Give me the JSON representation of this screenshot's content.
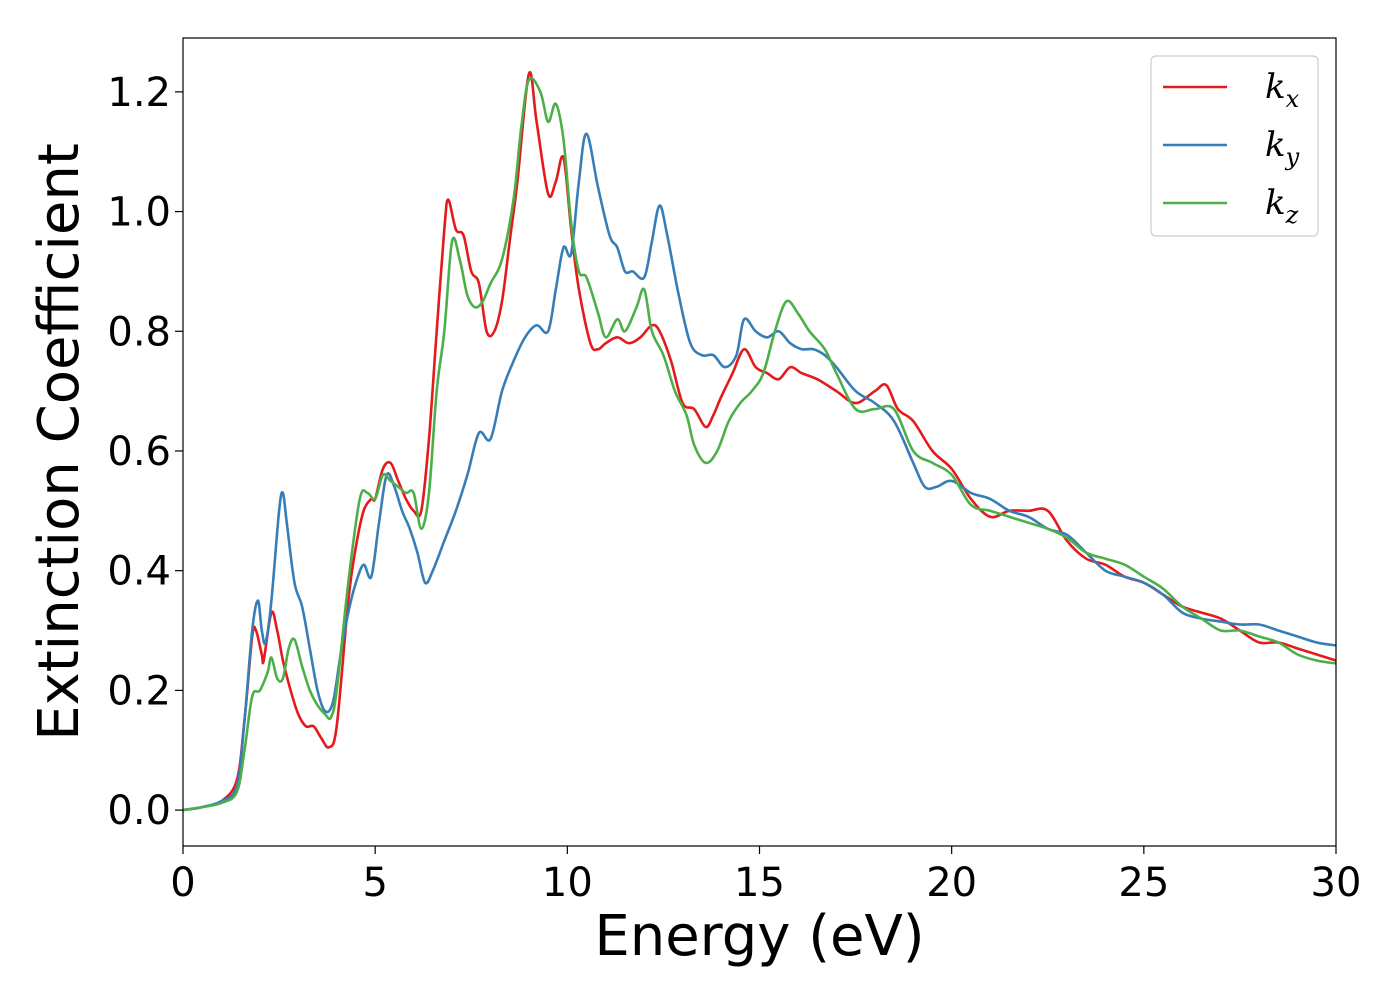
{
  "chart_data": {
    "type": "line",
    "title": "",
    "xlabel": "Energy (eV)",
    "ylabel": "Extinction Coefficient",
    "xlim": [
      0,
      30
    ],
    "ylim": [
      -0.06,
      1.29
    ],
    "xticks": [
      0,
      5,
      10,
      15,
      20,
      25,
      30
    ],
    "xtick_labels": [
      "0",
      "5",
      "10",
      "15",
      "20",
      "25",
      "30"
    ],
    "yticks": [
      0.0,
      0.2,
      0.4,
      0.6,
      0.8,
      1.0,
      1.2
    ],
    "ytick_labels": [
      "0.0",
      "0.2",
      "0.4",
      "0.6",
      "0.8",
      "1.0",
      "1.2"
    ],
    "grid": false,
    "legend_position": "top-right",
    "series": [
      {
        "name": "k_x",
        "legend_base": "k",
        "legend_sub": "x",
        "color": "#e41a1c",
        "points": [
          [
            0,
            0
          ],
          [
            0.5,
            0.005
          ],
          [
            1,
            0.015
          ],
          [
            1.4,
            0.05
          ],
          [
            1.6,
            0.15
          ],
          [
            1.8,
            0.29
          ],
          [
            1.9,
            0.3
          ],
          [
            2.05,
            0.26
          ],
          [
            2.1,
            0.25
          ],
          [
            2.3,
            0.33
          ],
          [
            2.45,
            0.3
          ],
          [
            2.6,
            0.25
          ],
          [
            2.8,
            0.2
          ],
          [
            3.0,
            0.16
          ],
          [
            3.2,
            0.14
          ],
          [
            3.4,
            0.14
          ],
          [
            3.6,
            0.12
          ],
          [
            3.8,
            0.105
          ],
          [
            4.0,
            0.14
          ],
          [
            4.3,
            0.35
          ],
          [
            4.5,
            0.44
          ],
          [
            4.7,
            0.5
          ],
          [
            4.9,
            0.52
          ],
          [
            5.0,
            0.52
          ],
          [
            5.2,
            0.57
          ],
          [
            5.4,
            0.58
          ],
          [
            5.6,
            0.55
          ],
          [
            5.8,
            0.52
          ],
          [
            6.0,
            0.5
          ],
          [
            6.2,
            0.5
          ],
          [
            6.4,
            0.62
          ],
          [
            6.6,
            0.8
          ],
          [
            6.8,
            0.97
          ],
          [
            6.9,
            1.02
          ],
          [
            7.1,
            0.97
          ],
          [
            7.3,
            0.96
          ],
          [
            7.5,
            0.9
          ],
          [
            7.7,
            0.88
          ],
          [
            7.9,
            0.8
          ],
          [
            8.1,
            0.8
          ],
          [
            8.3,
            0.85
          ],
          [
            8.5,
            0.95
          ],
          [
            8.7,
            1.05
          ],
          [
            9.0,
            1.23
          ],
          [
            9.2,
            1.15
          ],
          [
            9.5,
            1.03
          ],
          [
            9.7,
            1.05
          ],
          [
            9.9,
            1.09
          ],
          [
            10.1,
            0.97
          ],
          [
            10.3,
            0.87
          ],
          [
            10.6,
            0.78
          ],
          [
            10.8,
            0.77
          ],
          [
            11.0,
            0.78
          ],
          [
            11.3,
            0.79
          ],
          [
            11.6,
            0.78
          ],
          [
            11.9,
            0.79
          ],
          [
            12.2,
            0.81
          ],
          [
            12.4,
            0.8
          ],
          [
            12.7,
            0.75
          ],
          [
            13.0,
            0.68
          ],
          [
            13.3,
            0.67
          ],
          [
            13.6,
            0.64
          ],
          [
            13.8,
            0.66
          ],
          [
            14.0,
            0.69
          ],
          [
            14.3,
            0.73
          ],
          [
            14.6,
            0.77
          ],
          [
            14.9,
            0.74
          ],
          [
            15.2,
            0.73
          ],
          [
            15.5,
            0.72
          ],
          [
            15.8,
            0.74
          ],
          [
            16.1,
            0.73
          ],
          [
            16.5,
            0.72
          ],
          [
            17.0,
            0.7
          ],
          [
            17.5,
            0.68
          ],
          [
            18.0,
            0.7
          ],
          [
            18.3,
            0.71
          ],
          [
            18.6,
            0.67
          ],
          [
            19.0,
            0.65
          ],
          [
            19.5,
            0.6
          ],
          [
            20.0,
            0.57
          ],
          [
            20.5,
            0.52
          ],
          [
            21.0,
            0.49
          ],
          [
            21.5,
            0.5
          ],
          [
            22.0,
            0.5
          ],
          [
            22.5,
            0.5
          ],
          [
            23.0,
            0.45
          ],
          [
            23.5,
            0.42
          ],
          [
            24.0,
            0.41
          ],
          [
            24.5,
            0.39
          ],
          [
            25.0,
            0.38
          ],
          [
            25.5,
            0.36
          ],
          [
            26.0,
            0.34
          ],
          [
            26.5,
            0.33
          ],
          [
            27.0,
            0.32
          ],
          [
            27.5,
            0.3
          ],
          [
            28.0,
            0.28
          ],
          [
            28.5,
            0.28
          ],
          [
            29.0,
            0.27
          ],
          [
            29.5,
            0.26
          ],
          [
            30.0,
            0.25
          ]
        ]
      },
      {
        "name": "k_y",
        "legend_base": "k",
        "legend_sub": "y",
        "color": "#377eb8",
        "points": [
          [
            0,
            0
          ],
          [
            0.5,
            0.005
          ],
          [
            1,
            0.015
          ],
          [
            1.4,
            0.04
          ],
          [
            1.6,
            0.15
          ],
          [
            1.8,
            0.3
          ],
          [
            1.95,
            0.35
          ],
          [
            2.05,
            0.3
          ],
          [
            2.15,
            0.28
          ],
          [
            2.3,
            0.35
          ],
          [
            2.5,
            0.5
          ],
          [
            2.6,
            0.53
          ],
          [
            2.7,
            0.48
          ],
          [
            2.9,
            0.38
          ],
          [
            3.1,
            0.34
          ],
          [
            3.3,
            0.27
          ],
          [
            3.5,
            0.2
          ],
          [
            3.7,
            0.165
          ],
          [
            3.9,
            0.18
          ],
          [
            4.1,
            0.26
          ],
          [
            4.3,
            0.33
          ],
          [
            4.5,
            0.38
          ],
          [
            4.7,
            0.41
          ],
          [
            4.9,
            0.39
          ],
          [
            5.1,
            0.48
          ],
          [
            5.3,
            0.56
          ],
          [
            5.5,
            0.54
          ],
          [
            5.7,
            0.5
          ],
          [
            5.9,
            0.47
          ],
          [
            6.1,
            0.43
          ],
          [
            6.3,
            0.38
          ],
          [
            6.5,
            0.4
          ],
          [
            6.8,
            0.45
          ],
          [
            7.1,
            0.5
          ],
          [
            7.4,
            0.56
          ],
          [
            7.7,
            0.63
          ],
          [
            8.0,
            0.62
          ],
          [
            8.3,
            0.7
          ],
          [
            8.6,
            0.75
          ],
          [
            8.9,
            0.79
          ],
          [
            9.2,
            0.81
          ],
          [
            9.5,
            0.8
          ],
          [
            9.7,
            0.87
          ],
          [
            9.9,
            0.94
          ],
          [
            10.1,
            0.93
          ],
          [
            10.3,
            1.05
          ],
          [
            10.5,
            1.13
          ],
          [
            10.8,
            1.04
          ],
          [
            11.1,
            0.96
          ],
          [
            11.3,
            0.94
          ],
          [
            11.5,
            0.9
          ],
          [
            11.7,
            0.9
          ],
          [
            12.0,
            0.89
          ],
          [
            12.2,
            0.95
          ],
          [
            12.4,
            1.01
          ],
          [
            12.6,
            0.96
          ],
          [
            12.9,
            0.86
          ],
          [
            13.2,
            0.78
          ],
          [
            13.5,
            0.76
          ],
          [
            13.8,
            0.76
          ],
          [
            14.1,
            0.74
          ],
          [
            14.4,
            0.76
          ],
          [
            14.6,
            0.82
          ],
          [
            14.9,
            0.8
          ],
          [
            15.2,
            0.79
          ],
          [
            15.5,
            0.8
          ],
          [
            15.8,
            0.78
          ],
          [
            16.1,
            0.77
          ],
          [
            16.4,
            0.77
          ],
          [
            16.7,
            0.76
          ],
          [
            17.0,
            0.74
          ],
          [
            17.5,
            0.7
          ],
          [
            18.0,
            0.68
          ],
          [
            18.5,
            0.65
          ],
          [
            19.0,
            0.58
          ],
          [
            19.3,
            0.54
          ],
          [
            19.6,
            0.54
          ],
          [
            20.0,
            0.55
          ],
          [
            20.5,
            0.53
          ],
          [
            21.0,
            0.52
          ],
          [
            21.5,
            0.5
          ],
          [
            22.0,
            0.49
          ],
          [
            22.5,
            0.47
          ],
          [
            23.0,
            0.46
          ],
          [
            23.5,
            0.43
          ],
          [
            24.0,
            0.4
          ],
          [
            24.5,
            0.39
          ],
          [
            25.0,
            0.38
          ],
          [
            25.5,
            0.36
          ],
          [
            26.0,
            0.33
          ],
          [
            26.5,
            0.32
          ],
          [
            27.0,
            0.315
          ],
          [
            27.5,
            0.31
          ],
          [
            28.0,
            0.31
          ],
          [
            28.5,
            0.3
          ],
          [
            29.0,
            0.29
          ],
          [
            29.5,
            0.28
          ],
          [
            30.0,
            0.275
          ]
        ]
      },
      {
        "name": "k_z",
        "legend_base": "k",
        "legend_sub": "z",
        "color": "#4daf4a",
        "points": [
          [
            0,
            0
          ],
          [
            0.5,
            0.005
          ],
          [
            1,
            0.012
          ],
          [
            1.4,
            0.03
          ],
          [
            1.6,
            0.1
          ],
          [
            1.8,
            0.19
          ],
          [
            2.0,
            0.2
          ],
          [
            2.2,
            0.23
          ],
          [
            2.3,
            0.255
          ],
          [
            2.45,
            0.22
          ],
          [
            2.6,
            0.22
          ],
          [
            2.75,
            0.27
          ],
          [
            2.9,
            0.285
          ],
          [
            3.1,
            0.24
          ],
          [
            3.3,
            0.2
          ],
          [
            3.5,
            0.175
          ],
          [
            3.7,
            0.16
          ],
          [
            3.85,
            0.155
          ],
          [
            4.0,
            0.2
          ],
          [
            4.3,
            0.38
          ],
          [
            4.6,
            0.52
          ],
          [
            4.8,
            0.53
          ],
          [
            5.0,
            0.52
          ],
          [
            5.2,
            0.56
          ],
          [
            5.4,
            0.55
          ],
          [
            5.6,
            0.54
          ],
          [
            5.8,
            0.53
          ],
          [
            6.0,
            0.53
          ],
          [
            6.2,
            0.47
          ],
          [
            6.4,
            0.53
          ],
          [
            6.6,
            0.7
          ],
          [
            6.8,
            0.8
          ],
          [
            7.0,
            0.95
          ],
          [
            7.2,
            0.92
          ],
          [
            7.4,
            0.86
          ],
          [
            7.6,
            0.84
          ],
          [
            7.8,
            0.85
          ],
          [
            8.0,
            0.88
          ],
          [
            8.3,
            0.92
          ],
          [
            8.6,
            1.02
          ],
          [
            8.8,
            1.14
          ],
          [
            9.0,
            1.22
          ],
          [
            9.3,
            1.2
          ],
          [
            9.5,
            1.15
          ],
          [
            9.7,
            1.18
          ],
          [
            9.9,
            1.12
          ],
          [
            10.1,
            0.98
          ],
          [
            10.3,
            0.9
          ],
          [
            10.5,
            0.89
          ],
          [
            10.8,
            0.83
          ],
          [
            11.0,
            0.79
          ],
          [
            11.3,
            0.82
          ],
          [
            11.5,
            0.8
          ],
          [
            11.8,
            0.84
          ],
          [
            12.0,
            0.87
          ],
          [
            12.2,
            0.8
          ],
          [
            12.5,
            0.76
          ],
          [
            12.8,
            0.7
          ],
          [
            13.1,
            0.66
          ],
          [
            13.3,
            0.61
          ],
          [
            13.6,
            0.58
          ],
          [
            13.9,
            0.6
          ],
          [
            14.2,
            0.65
          ],
          [
            14.5,
            0.68
          ],
          [
            14.8,
            0.7
          ],
          [
            15.1,
            0.73
          ],
          [
            15.4,
            0.8
          ],
          [
            15.7,
            0.85
          ],
          [
            16.0,
            0.83
          ],
          [
            16.3,
            0.8
          ],
          [
            16.7,
            0.77
          ],
          [
            17.0,
            0.73
          ],
          [
            17.5,
            0.67
          ],
          [
            18.0,
            0.67
          ],
          [
            18.5,
            0.67
          ],
          [
            19.0,
            0.6
          ],
          [
            19.5,
            0.58
          ],
          [
            20.0,
            0.56
          ],
          [
            20.5,
            0.51
          ],
          [
            21.0,
            0.5
          ],
          [
            21.5,
            0.49
          ],
          [
            22.0,
            0.48
          ],
          [
            22.5,
            0.47
          ],
          [
            23.0,
            0.455
          ],
          [
            23.5,
            0.43
          ],
          [
            24.0,
            0.42
          ],
          [
            24.5,
            0.41
          ],
          [
            25.0,
            0.39
          ],
          [
            25.5,
            0.37
          ],
          [
            26.0,
            0.34
          ],
          [
            26.5,
            0.32
          ],
          [
            27.0,
            0.3
          ],
          [
            27.5,
            0.3
          ],
          [
            28.0,
            0.29
          ],
          [
            28.5,
            0.28
          ],
          [
            29.0,
            0.26
          ],
          [
            29.5,
            0.25
          ],
          [
            30.0,
            0.245
          ]
        ]
      }
    ]
  }
}
